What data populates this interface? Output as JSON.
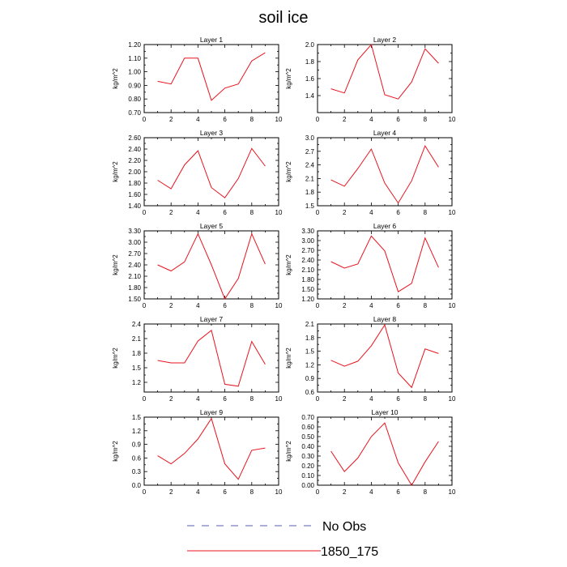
{
  "figure": {
    "title": "soil ice",
    "ylabel": "kg/m^2",
    "legend": [
      {
        "label": "No Obs",
        "color": "#5b5bb5",
        "dash": true
      },
      {
        "label": "1850_175",
        "color": "#e8141e",
        "dash": false
      }
    ]
  },
  "chart_data": [
    {
      "type": "line",
      "title": "Layer 1",
      "ylabel": "kg/m^2",
      "xlim": [
        0,
        10
      ],
      "ylim": [
        0.7,
        1.2
      ],
      "x_ticks": [
        0,
        2,
        4,
        6,
        8,
        10
      ],
      "y_ticks": [
        0.7,
        0.8,
        0.9,
        1.0,
        1.1,
        1.2
      ],
      "y_decimals": 2,
      "series": [
        {
          "color": "#e8141e",
          "x": [
            1,
            2,
            3,
            4,
            5,
            6,
            7,
            8,
            9
          ],
          "values": [
            0.93,
            0.91,
            1.1,
            1.1,
            0.79,
            0.88,
            0.91,
            1.08,
            1.14
          ]
        }
      ]
    },
    {
      "type": "line",
      "title": "Layer 2",
      "ylabel": "kg/m^2",
      "xlim": [
        0,
        10
      ],
      "ylim": [
        1.2,
        2.0
      ],
      "x_ticks": [
        0,
        2,
        4,
        6,
        8,
        10
      ],
      "y_ticks": [
        1.4,
        1.6,
        1.8,
        2.0
      ],
      "y_decimals": 1,
      "series": [
        {
          "color": "#e8141e",
          "x": [
            1,
            2,
            3,
            4,
            5,
            6,
            7,
            8,
            9
          ],
          "values": [
            1.48,
            1.43,
            1.82,
            2.0,
            1.41,
            1.36,
            1.56,
            1.95,
            1.78
          ]
        }
      ]
    },
    {
      "type": "line",
      "title": "Layer 3",
      "ylabel": "kg/m^2",
      "xlim": [
        0,
        10
      ],
      "ylim": [
        1.4,
        2.6
      ],
      "x_ticks": [
        0,
        2,
        4,
        6,
        8,
        10
      ],
      "y_ticks": [
        1.4,
        1.6,
        1.8,
        2.0,
        2.2,
        2.4,
        2.6
      ],
      "y_decimals": 2,
      "series": [
        {
          "color": "#e8141e",
          "x": [
            1,
            2,
            3,
            4,
            5,
            6,
            7,
            8,
            9
          ],
          "values": [
            1.85,
            1.7,
            2.12,
            2.37,
            1.72,
            1.54,
            1.88,
            2.41,
            2.1
          ]
        }
      ]
    },
    {
      "type": "line",
      "title": "Layer 4",
      "ylabel": "kg/m^2",
      "xlim": [
        0,
        10
      ],
      "ylim": [
        1.5,
        3.0
      ],
      "x_ticks": [
        0,
        2,
        4,
        6,
        8,
        10
      ],
      "y_ticks": [
        1.5,
        1.8,
        2.1,
        2.4,
        2.7,
        3.0
      ],
      "y_decimals": 1,
      "series": [
        {
          "color": "#e8141e",
          "x": [
            1,
            2,
            3,
            4,
            5,
            6,
            7,
            8,
            9
          ],
          "values": [
            2.07,
            1.93,
            2.32,
            2.75,
            2.0,
            1.56,
            2.05,
            2.82,
            2.35
          ]
        }
      ]
    },
    {
      "type": "line",
      "title": "Layer 5",
      "ylabel": "kg/m^2",
      "xlim": [
        0,
        10
      ],
      "ylim": [
        1.5,
        3.3
      ],
      "x_ticks": [
        0,
        2,
        4,
        6,
        8,
        10
      ],
      "y_ticks": [
        1.5,
        1.8,
        2.1,
        2.4,
        2.7,
        3.0,
        3.3
      ],
      "y_decimals": 2,
      "series": [
        {
          "color": "#e8141e",
          "x": [
            1,
            2,
            3,
            4,
            5,
            6,
            7,
            8,
            9
          ],
          "values": [
            2.4,
            2.24,
            2.48,
            3.22,
            2.4,
            1.5,
            2.04,
            3.22,
            2.42
          ]
        }
      ]
    },
    {
      "type": "line",
      "title": "Layer 6",
      "ylabel": "kg/m^2",
      "xlim": [
        0,
        10
      ],
      "ylim": [
        1.2,
        3.3
      ],
      "x_ticks": [
        0,
        2,
        4,
        6,
        8,
        10
      ],
      "y_ticks": [
        1.2,
        1.5,
        1.8,
        2.1,
        2.4,
        2.7,
        3.0,
        3.3
      ],
      "y_decimals": 2,
      "series": [
        {
          "color": "#e8141e",
          "x": [
            1,
            2,
            3,
            4,
            5,
            6,
            7,
            8,
            9
          ],
          "values": [
            2.35,
            2.15,
            2.28,
            3.14,
            2.68,
            1.42,
            1.68,
            3.08,
            2.17
          ]
        }
      ]
    },
    {
      "type": "line",
      "title": "Layer 7",
      "ylabel": "kg/m^2",
      "xlim": [
        0,
        10
      ],
      "ylim": [
        1.0,
        2.4
      ],
      "x_ticks": [
        0,
        2,
        4,
        6,
        8,
        10
      ],
      "y_ticks": [
        1.2,
        1.5,
        1.8,
        2.1,
        2.4
      ],
      "y_decimals": 1,
      "series": [
        {
          "color": "#e8141e",
          "x": [
            1,
            2,
            3,
            4,
            5,
            6,
            7,
            8,
            9
          ],
          "values": [
            1.65,
            1.6,
            1.6,
            2.05,
            2.27,
            1.16,
            1.12,
            2.04,
            1.57
          ]
        }
      ]
    },
    {
      "type": "line",
      "title": "Layer 8",
      "ylabel": "kg/m^2",
      "xlim": [
        0,
        10
      ],
      "ylim": [
        0.6,
        2.1
      ],
      "x_ticks": [
        0,
        2,
        4,
        6,
        8,
        10
      ],
      "y_ticks": [
        0.6,
        0.9,
        1.2,
        1.5,
        1.8,
        2.1
      ],
      "y_decimals": 1,
      "series": [
        {
          "color": "#e8141e",
          "x": [
            1,
            2,
            3,
            4,
            5,
            6,
            7,
            8,
            9
          ],
          "values": [
            1.3,
            1.17,
            1.28,
            1.62,
            2.08,
            1.02,
            0.7,
            1.55,
            1.45
          ]
        }
      ]
    },
    {
      "type": "line",
      "title": "Layer 9",
      "ylabel": "kg/m^2",
      "xlim": [
        0,
        10
      ],
      "ylim": [
        0.0,
        1.5
      ],
      "x_ticks": [
        0,
        2,
        4,
        6,
        8,
        10
      ],
      "y_ticks": [
        0.0,
        0.3,
        0.6,
        0.9,
        1.2,
        1.5
      ],
      "y_decimals": 1,
      "series": [
        {
          "color": "#e8141e",
          "x": [
            1,
            2,
            3,
            4,
            5,
            6,
            7,
            8,
            9
          ],
          "values": [
            0.65,
            0.47,
            0.7,
            1.02,
            1.47,
            0.47,
            0.13,
            0.77,
            0.82
          ]
        }
      ]
    },
    {
      "type": "line",
      "title": "Layer 10",
      "ylabel": "kg/m^2",
      "xlim": [
        0,
        10
      ],
      "ylim": [
        0.0,
        0.7
      ],
      "x_ticks": [
        0,
        2,
        4,
        6,
        8,
        10
      ],
      "y_ticks": [
        0.0,
        0.1,
        0.2,
        0.3,
        0.4,
        0.5,
        0.6,
        0.7
      ],
      "y_decimals": 2,
      "series": [
        {
          "color": "#e8141e",
          "x": [
            1,
            2,
            3,
            4,
            5,
            6,
            7,
            8,
            9
          ],
          "values": [
            0.35,
            0.14,
            0.28,
            0.5,
            0.64,
            0.23,
            0.0,
            0.24,
            0.45
          ]
        }
      ]
    }
  ]
}
